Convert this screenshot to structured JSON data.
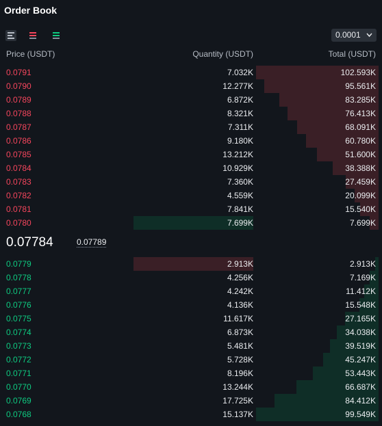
{
  "header": {
    "title": "Order Book",
    "tick_size": "0.0001"
  },
  "columns": [
    "Price (USDT)",
    "Quantity (USDT)",
    "Total (USDT)"
  ],
  "asks": [
    {
      "price": "0.0791",
      "quantity": "7.032K",
      "total": "102.593K"
    },
    {
      "price": "0.0790",
      "quantity": "12.277K",
      "total": "95.561K"
    },
    {
      "price": "0.0789",
      "quantity": "6.872K",
      "total": "83.285K"
    },
    {
      "price": "0.0788",
      "quantity": "8.321K",
      "total": "76.413K"
    },
    {
      "price": "0.0787",
      "quantity": "7.311K",
      "total": "68.091K"
    },
    {
      "price": "0.0786",
      "quantity": "9.180K",
      "total": "60.780K"
    },
    {
      "price": "0.0785",
      "quantity": "13.212K",
      "total": "51.600K"
    },
    {
      "price": "0.0784",
      "quantity": "10.929K",
      "total": "38.388K"
    },
    {
      "price": "0.0783",
      "quantity": "7.360K",
      "total": "27.459K"
    },
    {
      "price": "0.0782",
      "quantity": "4.559K",
      "total": "20.099K"
    },
    {
      "price": "0.0781",
      "quantity": "7.841K",
      "total": "15.540K"
    },
    {
      "price": "0.0780",
      "quantity": "7.699K",
      "total": "7.699K"
    }
  ],
  "mid": {
    "last_price": "0.07784",
    "mark_price": "0.07789"
  },
  "bids": [
    {
      "price": "0.0779",
      "quantity": "2.913K",
      "total": "2.913K"
    },
    {
      "price": "0.0778",
      "quantity": "4.256K",
      "total": "7.169K"
    },
    {
      "price": "0.0777",
      "quantity": "4.242K",
      "total": "11.412K"
    },
    {
      "price": "0.0776",
      "quantity": "4.136K",
      "total": "15.548K"
    },
    {
      "price": "0.0775",
      "quantity": "11.617K",
      "total": "27.165K"
    },
    {
      "price": "0.0774",
      "quantity": "6.873K",
      "total": "34.038K"
    },
    {
      "price": "0.0773",
      "quantity": "5.481K",
      "total": "39.519K"
    },
    {
      "price": "0.0772",
      "quantity": "5.728K",
      "total": "45.247K"
    },
    {
      "price": "0.0771",
      "quantity": "8.196K",
      "total": "53.443K"
    },
    {
      "price": "0.0770",
      "quantity": "13.244K",
      "total": "66.687K"
    },
    {
      "price": "0.0769",
      "quantity": "17.725K",
      "total": "84.412K"
    },
    {
      "price": "0.0768",
      "quantity": "15.137K",
      "total": "99.549K"
    }
  ]
}
